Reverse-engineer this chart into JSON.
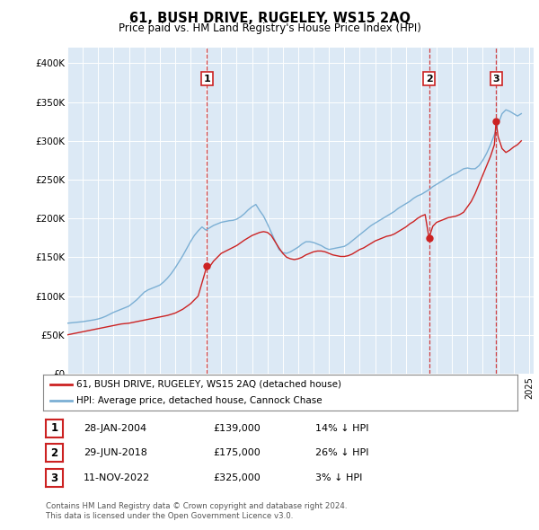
{
  "title": "61, BUSH DRIVE, RUGELEY, WS15 2AQ",
  "subtitle": "Price paid vs. HM Land Registry's House Price Index (HPI)",
  "hpi_label": "HPI: Average price, detached house, Cannock Chase",
  "price_label": "61, BUSH DRIVE, RUGELEY, WS15 2AQ (detached house)",
  "hpi_color": "#7bafd4",
  "price_color": "#cc2222",
  "vline_color": "#cc2222",
  "background_color": "#dce9f5",
  "ylim": [
    0,
    420000
  ],
  "yticks": [
    0,
    50000,
    100000,
    150000,
    200000,
    250000,
    300000,
    350000,
    400000
  ],
  "ytick_labels": [
    "£0",
    "£50K",
    "£100K",
    "£150K",
    "£200K",
    "£250K",
    "£300K",
    "£350K",
    "£400K"
  ],
  "sales": [
    {
      "date_num": 2004.07,
      "price": 139000,
      "label": "1"
    },
    {
      "date_num": 2018.5,
      "price": 175000,
      "label": "2"
    },
    {
      "date_num": 2022.86,
      "price": 325000,
      "label": "3"
    }
  ],
  "sale_dates_display": [
    "28-JAN-2004",
    "29-JUN-2018",
    "11-NOV-2022"
  ],
  "sale_prices_display": [
    "£139,000",
    "£175,000",
    "£325,000"
  ],
  "sale_hpi_display": [
    "14% ↓ HPI",
    "26% ↓ HPI",
    "3% ↓ HPI"
  ],
  "footnote1": "Contains HM Land Registry data © Crown copyright and database right 2024.",
  "footnote2": "This data is licensed under the Open Government Licence v3.0.",
  "hpi_data_years": [
    1995.0,
    1995.25,
    1995.5,
    1995.75,
    1996.0,
    1996.25,
    1996.5,
    1996.75,
    1997.0,
    1997.25,
    1997.5,
    1997.75,
    1998.0,
    1998.25,
    1998.5,
    1998.75,
    1999.0,
    1999.25,
    1999.5,
    1999.75,
    2000.0,
    2000.25,
    2000.5,
    2000.75,
    2001.0,
    2001.25,
    2001.5,
    2001.75,
    2002.0,
    2002.25,
    2002.5,
    2002.75,
    2003.0,
    2003.25,
    2003.5,
    2003.75,
    2004.0,
    2004.25,
    2004.5,
    2004.75,
    2005.0,
    2005.25,
    2005.5,
    2005.75,
    2006.0,
    2006.25,
    2006.5,
    2006.75,
    2007.0,
    2007.25,
    2007.5,
    2007.75,
    2008.0,
    2008.25,
    2008.5,
    2008.75,
    2009.0,
    2009.25,
    2009.5,
    2009.75,
    2010.0,
    2010.25,
    2010.5,
    2010.75,
    2011.0,
    2011.25,
    2011.5,
    2011.75,
    2012.0,
    2012.25,
    2012.5,
    2012.75,
    2013.0,
    2013.25,
    2013.5,
    2013.75,
    2014.0,
    2014.25,
    2014.5,
    2014.75,
    2015.0,
    2015.25,
    2015.5,
    2015.75,
    2016.0,
    2016.25,
    2016.5,
    2016.75,
    2017.0,
    2017.25,
    2017.5,
    2017.75,
    2018.0,
    2018.25,
    2018.5,
    2018.75,
    2019.0,
    2019.25,
    2019.5,
    2019.75,
    2020.0,
    2020.25,
    2020.5,
    2020.75,
    2021.0,
    2021.25,
    2021.5,
    2021.75,
    2022.0,
    2022.25,
    2022.5,
    2022.75,
    2023.0,
    2023.25,
    2023.5,
    2023.75,
    2024.0,
    2024.25,
    2024.5
  ],
  "hpi_data_values": [
    65000,
    65500,
    66000,
    66500,
    67000,
    67800,
    68600,
    69400,
    70500,
    72000,
    74000,
    76500,
    79000,
    81000,
    83000,
    85000,
    87000,
    91000,
    95000,
    100000,
    105000,
    108000,
    110000,
    112000,
    114000,
    118000,
    123000,
    129000,
    136000,
    144000,
    152000,
    161000,
    170000,
    178000,
    184000,
    189000,
    185000,
    188000,
    191000,
    193000,
    195000,
    196000,
    197000,
    197500,
    199000,
    202000,
    206000,
    211000,
    215000,
    218000,
    210000,
    203000,
    193000,
    182000,
    171000,
    160000,
    156000,
    155000,
    157000,
    160000,
    163000,
    167000,
    170000,
    170000,
    169000,
    167000,
    165000,
    162000,
    160000,
    161000,
    162000,
    163000,
    164000,
    167000,
    171000,
    175000,
    179000,
    183000,
    187000,
    191000,
    194000,
    197000,
    200000,
    203000,
    206000,
    209000,
    213000,
    216000,
    219000,
    222000,
    226000,
    229000,
    231000,
    234000,
    237000,
    241000,
    244000,
    247000,
    250000,
    253000,
    256000,
    258000,
    261000,
    264000,
    265000,
    264000,
    264000,
    268000,
    275000,
    284000,
    295000,
    308000,
    322000,
    335000,
    340000,
    338000,
    335000,
    332000,
    335000
  ],
  "price_data_years": [
    1995.0,
    1995.25,
    1995.5,
    1995.75,
    1996.0,
    1996.5,
    1997.0,
    1997.5,
    1998.0,
    1998.5,
    1999.0,
    1999.5,
    2000.0,
    2000.5,
    2001.0,
    2001.5,
    2002.0,
    2002.5,
    2003.0,
    2003.5,
    2004.07,
    2004.25,
    2004.5,
    2004.75,
    2005.0,
    2005.5,
    2006.0,
    2006.5,
    2007.0,
    2007.25,
    2007.5,
    2007.75,
    2008.0,
    2008.25,
    2008.5,
    2008.75,
    2009.0,
    2009.25,
    2009.5,
    2009.75,
    2010.0,
    2010.25,
    2010.5,
    2010.75,
    2011.0,
    2011.25,
    2011.5,
    2011.75,
    2012.0,
    2012.25,
    2012.5,
    2012.75,
    2013.0,
    2013.25,
    2013.5,
    2013.75,
    2014.0,
    2014.25,
    2014.5,
    2014.75,
    2015.0,
    2015.25,
    2015.5,
    2015.75,
    2016.0,
    2016.25,
    2016.5,
    2016.75,
    2017.0,
    2017.25,
    2017.5,
    2017.75,
    2018.0,
    2018.25,
    2018.5,
    2018.75,
    2019.0,
    2019.25,
    2019.5,
    2019.75,
    2020.0,
    2020.25,
    2020.5,
    2020.75,
    2021.0,
    2021.25,
    2021.5,
    2021.75,
    2022.0,
    2022.25,
    2022.5,
    2022.75,
    2022.86,
    2023.0,
    2023.25,
    2023.5,
    2023.75,
    2024.0,
    2024.25,
    2024.5
  ],
  "price_data_values": [
    50000,
    51000,
    52000,
    53000,
    54000,
    56000,
    58000,
    60000,
    62000,
    64000,
    65000,
    67000,
    69000,
    71000,
    73000,
    75000,
    78000,
    83000,
    90000,
    100000,
    139000,
    138000,
    145000,
    150000,
    155000,
    160000,
    165000,
    172000,
    178000,
    180000,
    182000,
    183000,
    182000,
    178000,
    170000,
    162000,
    155000,
    150000,
    148000,
    147000,
    148000,
    150000,
    153000,
    155000,
    157000,
    158000,
    158000,
    157000,
    155000,
    153000,
    152000,
    151000,
    151000,
    152000,
    154000,
    157000,
    160000,
    162000,
    165000,
    168000,
    171000,
    173000,
    175000,
    177000,
    178000,
    180000,
    183000,
    186000,
    189000,
    193000,
    196000,
    200000,
    203000,
    205000,
    175000,
    190000,
    195000,
    197000,
    199000,
    201000,
    202000,
    203000,
    205000,
    208000,
    215000,
    222000,
    232000,
    244000,
    256000,
    268000,
    280000,
    295000,
    325000,
    305000,
    290000,
    285000,
    288000,
    292000,
    295000,
    300000
  ]
}
